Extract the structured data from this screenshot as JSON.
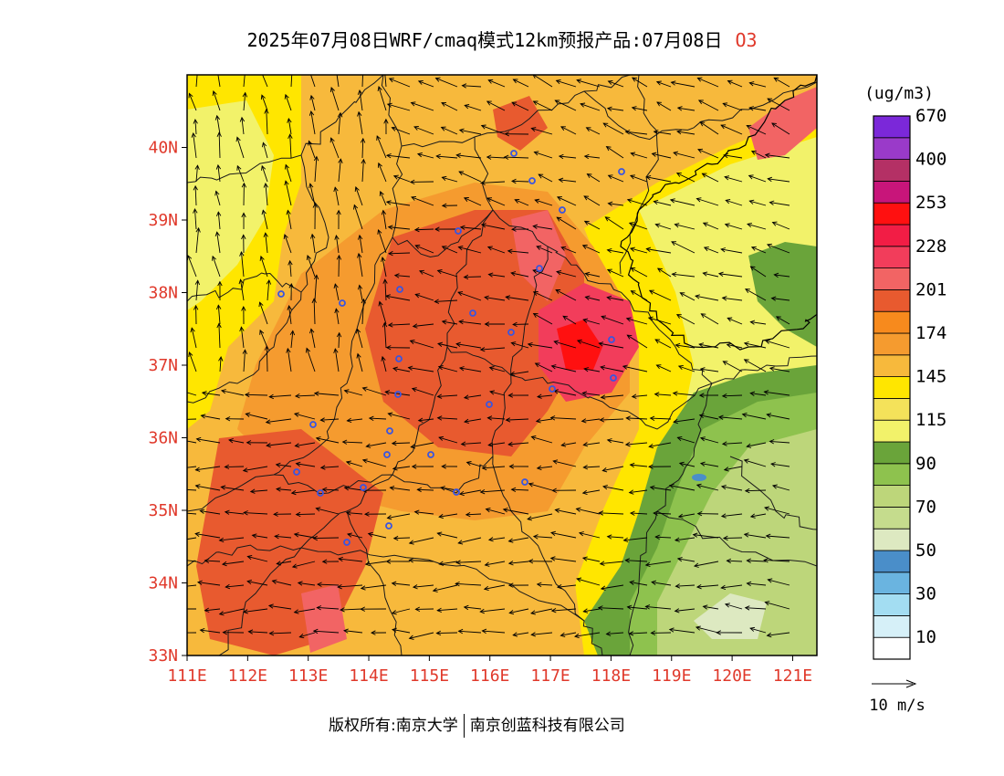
{
  "title": {
    "text": "2025年07月08日WRF/cmaq模式12km预报产品:07月08日",
    "pollutant": "O3"
  },
  "map": {
    "lon_range": [
      111,
      121.4
    ],
    "lat_range": [
      33,
      41
    ],
    "lon_ticks": [
      "111E",
      "112E",
      "113E",
      "114E",
      "115E",
      "116E",
      "117E",
      "118E",
      "119E",
      "120E",
      "121E"
    ],
    "lat_ticks": [
      "33N",
      "34N",
      "35N",
      "36N",
      "37N",
      "38N",
      "39N",
      "40N"
    ],
    "tick_color": "#e0392b"
  },
  "legend": {
    "unit": "(ug/m3)",
    "colors": [
      "#ffffff",
      "#d6f0f8",
      "#a3ddf2",
      "#6ab4e0",
      "#4a8ec9",
      "#dde9c1",
      "#c5dc8d",
      "#bdd67a",
      "#8ec24e",
      "#6aa43a",
      "#f2f26a",
      "#f4e25a",
      "#ffe600",
      "#f7b93c",
      "#f59b2f",
      "#f78a1d",
      "#e85a2f",
      "#f26464",
      "#f23d5b",
      "#f21d45",
      "#ff1010",
      "#c8157a",
      "#b43065",
      "#9a3ac9",
      "#7b28d9"
    ],
    "labels": [
      "10",
      "30",
      "50",
      "70",
      "90",
      "115",
      "145",
      "174",
      "201",
      "228",
      "253",
      "400",
      "670"
    ],
    "wind_scale_label": "10 m/s"
  },
  "footer": {
    "left": "版权所有:南京大学",
    "right": "南京创蓝科技有限公司"
  }
}
